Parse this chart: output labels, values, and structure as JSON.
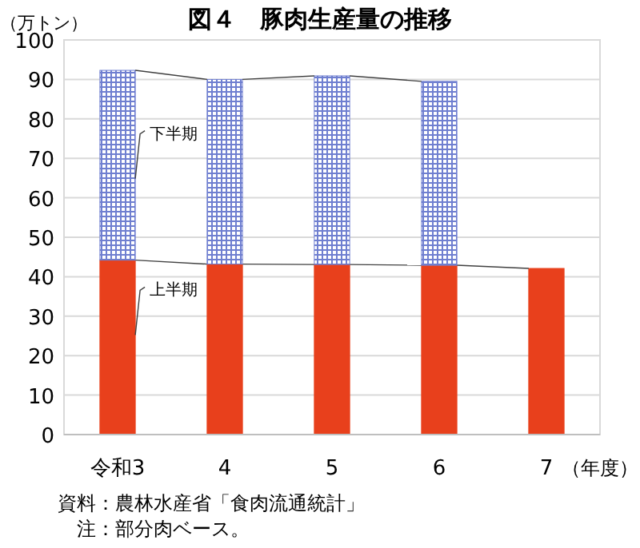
{
  "chart_data": {
    "type": "bar",
    "title": "図４　豚肉生産量の推移",
    "ylabel": "（万トン）",
    "xlabel": "（年度）",
    "categories": [
      "令和3",
      "4",
      "5",
      "6",
      "7"
    ],
    "stacked": true,
    "series": [
      {
        "name": "上半期",
        "color": "#e8401c",
        "values": [
          44.2,
          43.2,
          43.1,
          42.9,
          42.1
        ]
      },
      {
        "name": "下半期",
        "color": "#6f7fd0",
        "values": [
          48.1,
          46.8,
          47.8,
          46.6,
          null
        ]
      }
    ],
    "ylim": [
      0,
      100
    ],
    "yticks": [
      0,
      10,
      20,
      30,
      40,
      50,
      60,
      70,
      80,
      90,
      100
    ],
    "grid": "y",
    "annotations": [
      "資料：農林水産省「食肉流通統計」",
      "注：部分肉ベース。"
    ]
  }
}
